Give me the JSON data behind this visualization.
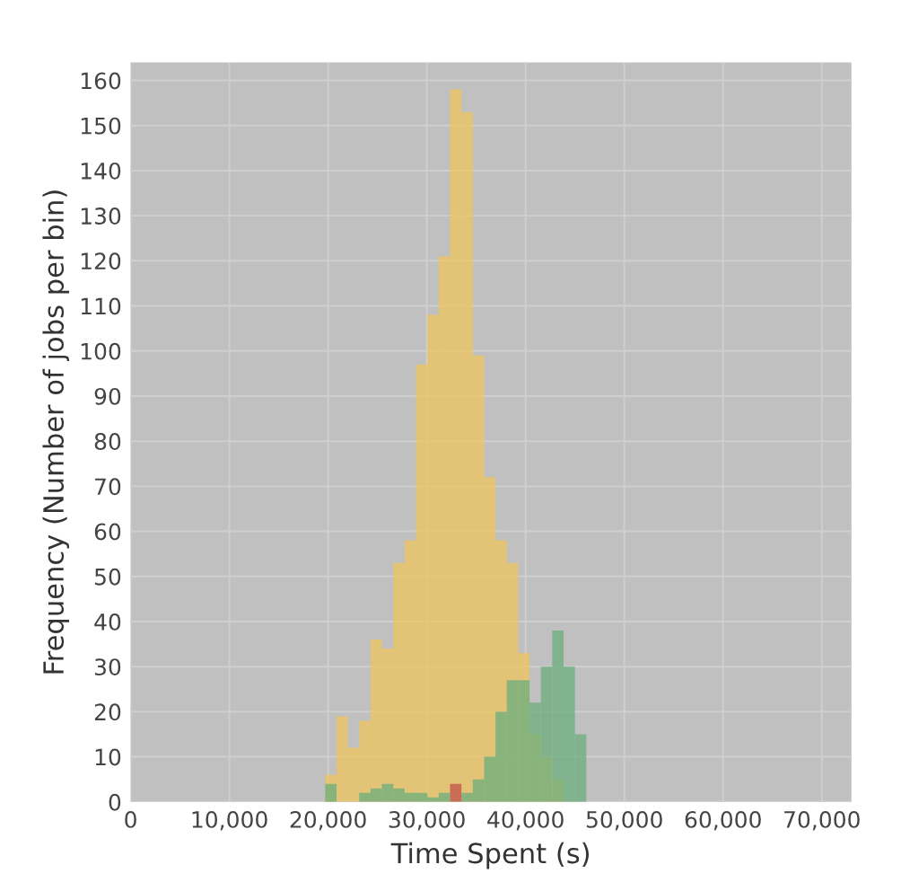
{
  "chart_data": {
    "type": "histogram",
    "xlabel": "Time Spent (s)",
    "ylabel": "Frequency (Number of jobs per bin)",
    "bins": [
      19700,
      20850,
      22000,
      23150,
      24300,
      25450,
      26600,
      27750,
      28900,
      30050,
      31200,
      32350,
      33500,
      34650,
      35800,
      36950,
      38100,
      39250,
      40400,
      41550,
      42700,
      43850,
      45000,
      46150
    ],
    "series": [
      {
        "color": "#efc45c",
        "values": [
          6,
          19,
          12,
          18,
          36,
          34,
          53,
          58,
          97,
          108,
          121,
          158,
          153,
          99,
          72,
          58,
          53,
          33,
          15,
          10,
          5,
          0,
          0
        ]
      },
      {
        "color": "#6aae7c",
        "values": [
          4,
          0,
          0,
          2,
          3,
          4,
          3,
          2,
          2,
          1,
          2,
          null,
          2,
          5,
          10,
          20,
          27,
          27,
          22,
          30,
          38,
          30,
          15
        ]
      },
      {
        "color": "#c0504d",
        "values": [
          0,
          0,
          0,
          0,
          0,
          0,
          0,
          0,
          0,
          0,
          0,
          4,
          0,
          0,
          0,
          0,
          0,
          0,
          0,
          0,
          0,
          0,
          0
        ]
      }
    ],
    "xlim": [
      0,
      73000
    ],
    "xticks": [
      {
        "value": 0,
        "label": "0"
      },
      {
        "value": 10000,
        "label": "10,000"
      },
      {
        "value": 20000,
        "label": "20,000"
      },
      {
        "value": 30000,
        "label": "30,000"
      },
      {
        "value": 40000,
        "label": "40,000"
      },
      {
        "value": 50000,
        "label": "50,000"
      },
      {
        "value": 60000,
        "label": "60,000"
      },
      {
        "value": 70000,
        "label": "70,000"
      }
    ],
    "ylim": [
      0,
      164
    ],
    "yticks": [
      0,
      10,
      20,
      30,
      40,
      50,
      60,
      70,
      80,
      90,
      100,
      110,
      120,
      130,
      140,
      150,
      160
    ],
    "grid": true,
    "legend": false
  }
}
